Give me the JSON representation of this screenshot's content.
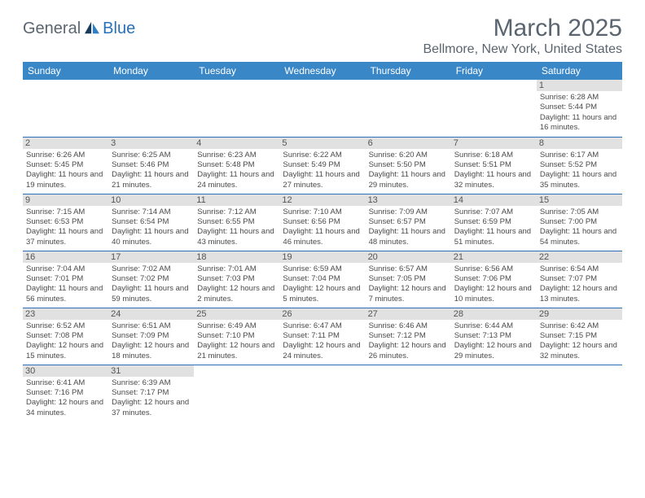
{
  "logo": {
    "part1": "General",
    "part2": "Blue"
  },
  "title": "March 2025",
  "location": "Bellmore, New York, United States",
  "header_bg": "#3a87c8",
  "accent_color": "#2970b8",
  "daynum_bg": "#e1e1e1",
  "text_color": "#5a6570",
  "day_names": [
    "Sunday",
    "Monday",
    "Tuesday",
    "Wednesday",
    "Thursday",
    "Friday",
    "Saturday"
  ],
  "weeks": [
    [
      null,
      null,
      null,
      null,
      null,
      null,
      {
        "n": "1",
        "sr": "6:28 AM",
        "ss": "5:44 PM",
        "dl": "11 hours and 16 minutes."
      }
    ],
    [
      {
        "n": "2",
        "sr": "6:26 AM",
        "ss": "5:45 PM",
        "dl": "11 hours and 19 minutes."
      },
      {
        "n": "3",
        "sr": "6:25 AM",
        "ss": "5:46 PM",
        "dl": "11 hours and 21 minutes."
      },
      {
        "n": "4",
        "sr": "6:23 AM",
        "ss": "5:48 PM",
        "dl": "11 hours and 24 minutes."
      },
      {
        "n": "5",
        "sr": "6:22 AM",
        "ss": "5:49 PM",
        "dl": "11 hours and 27 minutes."
      },
      {
        "n": "6",
        "sr": "6:20 AM",
        "ss": "5:50 PM",
        "dl": "11 hours and 29 minutes."
      },
      {
        "n": "7",
        "sr": "6:18 AM",
        "ss": "5:51 PM",
        "dl": "11 hours and 32 minutes."
      },
      {
        "n": "8",
        "sr": "6:17 AM",
        "ss": "5:52 PM",
        "dl": "11 hours and 35 minutes."
      }
    ],
    [
      {
        "n": "9",
        "sr": "7:15 AM",
        "ss": "6:53 PM",
        "dl": "11 hours and 37 minutes."
      },
      {
        "n": "10",
        "sr": "7:14 AM",
        "ss": "6:54 PM",
        "dl": "11 hours and 40 minutes."
      },
      {
        "n": "11",
        "sr": "7:12 AM",
        "ss": "6:55 PM",
        "dl": "11 hours and 43 minutes."
      },
      {
        "n": "12",
        "sr": "7:10 AM",
        "ss": "6:56 PM",
        "dl": "11 hours and 46 minutes."
      },
      {
        "n": "13",
        "sr": "7:09 AM",
        "ss": "6:57 PM",
        "dl": "11 hours and 48 minutes."
      },
      {
        "n": "14",
        "sr": "7:07 AM",
        "ss": "6:59 PM",
        "dl": "11 hours and 51 minutes."
      },
      {
        "n": "15",
        "sr": "7:05 AM",
        "ss": "7:00 PM",
        "dl": "11 hours and 54 minutes."
      }
    ],
    [
      {
        "n": "16",
        "sr": "7:04 AM",
        "ss": "7:01 PM",
        "dl": "11 hours and 56 minutes."
      },
      {
        "n": "17",
        "sr": "7:02 AM",
        "ss": "7:02 PM",
        "dl": "11 hours and 59 minutes."
      },
      {
        "n": "18",
        "sr": "7:01 AM",
        "ss": "7:03 PM",
        "dl": "12 hours and 2 minutes."
      },
      {
        "n": "19",
        "sr": "6:59 AM",
        "ss": "7:04 PM",
        "dl": "12 hours and 5 minutes."
      },
      {
        "n": "20",
        "sr": "6:57 AM",
        "ss": "7:05 PM",
        "dl": "12 hours and 7 minutes."
      },
      {
        "n": "21",
        "sr": "6:56 AM",
        "ss": "7:06 PM",
        "dl": "12 hours and 10 minutes."
      },
      {
        "n": "22",
        "sr": "6:54 AM",
        "ss": "7:07 PM",
        "dl": "12 hours and 13 minutes."
      }
    ],
    [
      {
        "n": "23",
        "sr": "6:52 AM",
        "ss": "7:08 PM",
        "dl": "12 hours and 15 minutes."
      },
      {
        "n": "24",
        "sr": "6:51 AM",
        "ss": "7:09 PM",
        "dl": "12 hours and 18 minutes."
      },
      {
        "n": "25",
        "sr": "6:49 AM",
        "ss": "7:10 PM",
        "dl": "12 hours and 21 minutes."
      },
      {
        "n": "26",
        "sr": "6:47 AM",
        "ss": "7:11 PM",
        "dl": "12 hours and 24 minutes."
      },
      {
        "n": "27",
        "sr": "6:46 AM",
        "ss": "7:12 PM",
        "dl": "12 hours and 26 minutes."
      },
      {
        "n": "28",
        "sr": "6:44 AM",
        "ss": "7:13 PM",
        "dl": "12 hours and 29 minutes."
      },
      {
        "n": "29",
        "sr": "6:42 AM",
        "ss": "7:15 PM",
        "dl": "12 hours and 32 minutes."
      }
    ],
    [
      {
        "n": "30",
        "sr": "6:41 AM",
        "ss": "7:16 PM",
        "dl": "12 hours and 34 minutes."
      },
      {
        "n": "31",
        "sr": "6:39 AM",
        "ss": "7:17 PM",
        "dl": "12 hours and 37 minutes."
      },
      null,
      null,
      null,
      null,
      null
    ]
  ],
  "labels": {
    "sunrise": "Sunrise:",
    "sunset": "Sunset:",
    "daylight": "Daylight:"
  }
}
